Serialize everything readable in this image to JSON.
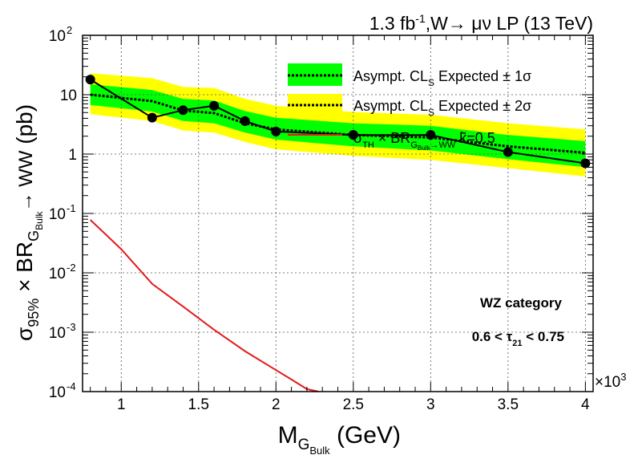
{
  "chart_data": {
    "type": "line",
    "title": {
      "lumi": "1.3 fb",
      "lumi_sup": "-1",
      "rest": ",W→ μν LP (13 TeV)"
    },
    "xlabel": {
      "main": "M",
      "sub": "G",
      "subsub": "Bulk",
      "unit": "  (GeV)"
    },
    "ylabel": {
      "sigma": "σ",
      "sigma_sub": "95%",
      "times_br": " × BR",
      "br_sub": "G",
      "br_subsub": "Bulk",
      "tail": "→ WW",
      "unit": " (pb)"
    },
    "x_multiplier": {
      "base": "×10",
      "exp": "3"
    },
    "xlim": [
      0.75,
      4.05
    ],
    "ylim_log10": [
      -4,
      2
    ],
    "x_ticks": [
      {
        "v": 1,
        "label": "1"
      },
      {
        "v": 1.5,
        "label": "1.5"
      },
      {
        "v": 2,
        "label": "2"
      },
      {
        "v": 2.5,
        "label": "2.5"
      },
      {
        "v": 3,
        "label": "3"
      },
      {
        "v": 3.5,
        "label": "3.5"
      },
      {
        "v": 4,
        "label": "4"
      }
    ],
    "y_ticks": [
      {
        "e": 2,
        "label": "10",
        "exp": "2"
      },
      {
        "e": 1,
        "label": "10",
        "exp": ""
      },
      {
        "e": 0,
        "label": "1",
        "exp": ""
      },
      {
        "e": -1,
        "label": "10",
        "exp": "-1"
      },
      {
        "e": -2,
        "label": "10",
        "exp": "-2"
      },
      {
        "e": -3,
        "label": "10",
        "exp": "-3"
      },
      {
        "e": -4,
        "label": "10",
        "exp": "-4"
      }
    ],
    "grid": true,
    "log_y": true,
    "x": [
      0.8,
      1.2,
      1.4,
      1.6,
      1.8,
      2.0,
      2.5,
      3.0,
      3.5,
      4.0
    ],
    "observed": [
      18.0,
      4.1,
      5.5,
      6.5,
      3.6,
      2.4,
      2.1,
      2.1,
      1.08,
      0.7
    ],
    "expected": [
      10.0,
      7.8,
      5.4,
      4.9,
      3.3,
      2.6,
      2.1,
      1.9,
      1.35,
      1.05
    ],
    "band_1sigma_low": [
      6.7,
      5.2,
      3.6,
      3.3,
      2.3,
      1.75,
      1.35,
      1.15,
      0.82,
      0.6
    ],
    "band_1sigma_high": [
      15.0,
      12.0,
      8.5,
      8.0,
      5.3,
      4.1,
      3.3,
      3.0,
      2.1,
      1.65
    ],
    "band_2sigma_low": [
      4.7,
      3.6,
      2.5,
      2.3,
      1.6,
      1.2,
      0.93,
      0.8,
      0.58,
      0.42
    ],
    "band_2sigma_high": [
      23.0,
      19.0,
      13.5,
      13.0,
      8.5,
      6.5,
      5.1,
      4.6,
      3.3,
      2.6
    ],
    "theory_x": [
      0.8,
      1.0,
      1.2,
      1.4,
      1.6,
      1.8,
      2.0,
      2.1,
      2.2,
      2.275
    ],
    "theory_y": [
      0.078,
      0.025,
      0.0065,
      0.0027,
      0.0011,
      0.00048,
      0.00023,
      0.00016,
      0.00011,
      0.0001
    ],
    "legend": {
      "placement": "top-right",
      "entry1": {
        "pre": "Asympt. CL",
        "sub": "S",
        "post": "  Expected ± 1σ"
      },
      "entry2": {
        "pre": "Asympt. CL",
        "sub": "S",
        "post": "  Expected ± 2σ"
      },
      "entry3": {
        "pre": "σ",
        "sub1": "TH",
        "mid": " × BR",
        "sub2": "G",
        "subsub2": "Bulk",
        "sub3": "→WW",
        "tail": "  k̃=0.5"
      }
    },
    "annotations": {
      "category": "WZ category",
      "cut": {
        "pre": "0.6 <  τ",
        "sub": "21",
        "post": " < 0.75"
      }
    },
    "colors": {
      "band_1sigma": "#00ff00",
      "band_2sigma": "#ffff00",
      "theory": "#e31a1c",
      "observed": "#000000",
      "expected": "#000000"
    }
  }
}
